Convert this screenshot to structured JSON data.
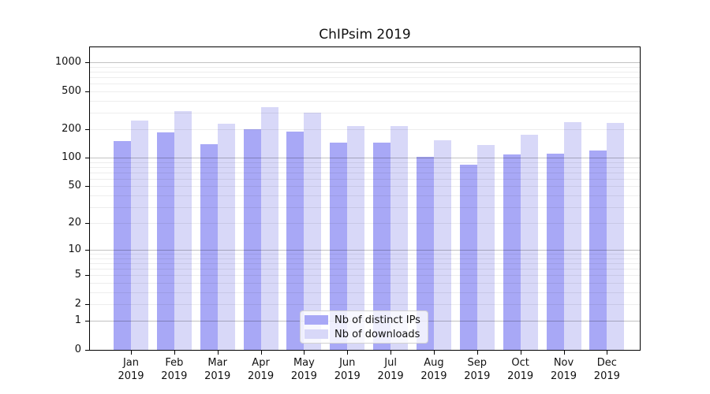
{
  "title": "ChIPsim 2019",
  "colors": {
    "distinct_ips": "#a8a8f6",
    "downloads": "#d8d8f8",
    "grid_major": "rgba(0,0,0,0.24)",
    "grid_minor": "rgba(0,0,0,0.07)",
    "axis": "#000000"
  },
  "legend": {
    "items": [
      {
        "label": "Nb of distinct IPs",
        "color_key": "distinct_ips"
      },
      {
        "label": "Nb of downloads",
        "color_key": "downloads"
      }
    ]
  },
  "chart_data": {
    "type": "bar",
    "title": "ChIPsim 2019",
    "categories": [
      "Jan",
      "Feb",
      "Mar",
      "Apr",
      "May",
      "Jun",
      "Jul",
      "Aug",
      "Sep",
      "Oct",
      "Nov",
      "Dec"
    ],
    "category_year": "2019",
    "series": [
      {
        "name": "Nb of distinct IPs",
        "color_key": "distinct_ips",
        "values": [
          150,
          187,
          140,
          200,
          188,
          145,
          146,
          103,
          85,
          108,
          110,
          120
        ]
      },
      {
        "name": "Nb of downloads",
        "color_key": "downloads",
        "values": [
          248,
          308,
          228,
          338,
          298,
          214,
          214,
          154,
          137,
          174,
          238,
          234
        ]
      }
    ],
    "ylabel": "",
    "xlabel": "",
    "yticks": [
      0,
      1,
      2,
      5,
      10,
      20,
      50,
      100,
      200,
      500,
      1000
    ],
    "scale": "log1p",
    "ylim": [
      0,
      1440
    ],
    "grid": true,
    "legend_position": "lower center"
  }
}
